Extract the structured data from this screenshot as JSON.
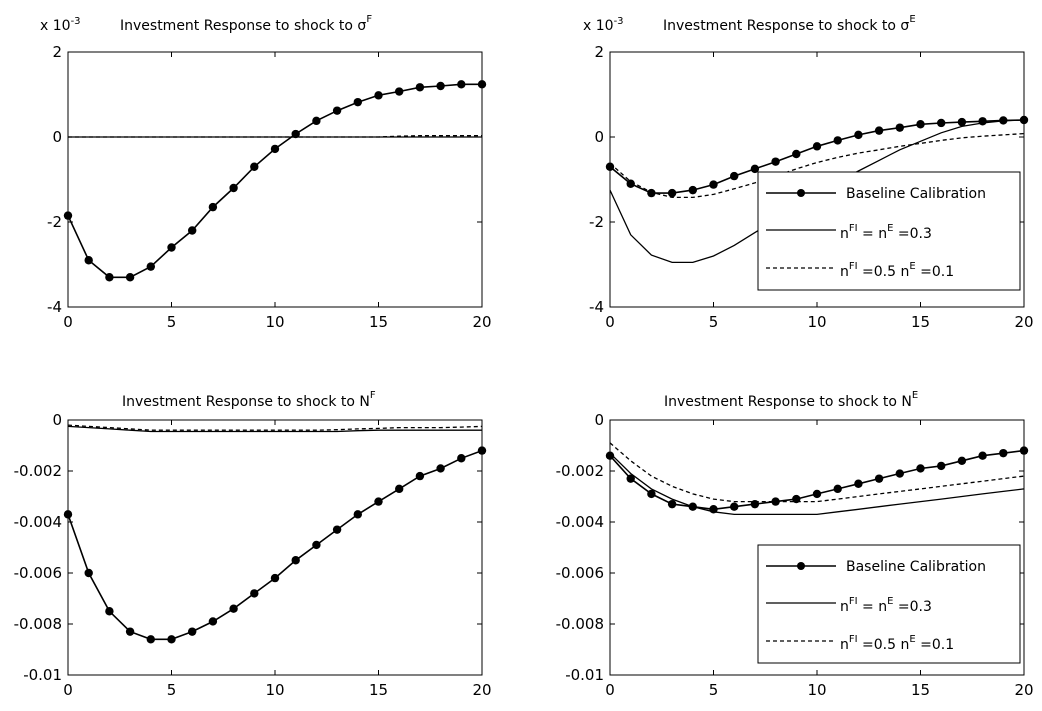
{
  "chart_data": [
    {
      "type": "line",
      "multiplier": "x 10",
      "multiplier_exp": "-3",
      "title": "Investment Response to shock to σ",
      "title_sup": "F",
      "xlim": [
        0,
        20
      ],
      "ylim": [
        -4,
        2
      ],
      "xticks": [
        "0",
        "5",
        "10",
        "15",
        "20"
      ],
      "yticks": [
        "-4",
        "-2",
        "0",
        "2"
      ],
      "grid": false,
      "series": [
        {
          "style": "dot",
          "x": [
            0,
            1,
            2,
            3,
            4,
            5,
            6,
            7,
            8,
            9,
            10,
            11,
            12,
            13,
            14,
            15,
            16,
            17,
            18,
            19,
            20
          ],
          "values": [
            -1.85,
            -2.9,
            -3.3,
            -3.3,
            -3.05,
            -2.6,
            -2.2,
            -1.65,
            -1.2,
            -0.7,
            -0.28,
            0.07,
            0.38,
            0.62,
            0.82,
            0.98,
            1.07,
            1.17,
            1.2,
            1.24,
            1.24
          ]
        },
        {
          "style": "solid",
          "x": [
            0,
            5,
            10,
            15,
            20
          ],
          "values": [
            0,
            0,
            0,
            0,
            0
          ]
        },
        {
          "style": "dashed",
          "x": [
            0,
            15,
            16,
            17,
            20
          ],
          "values": [
            0,
            0,
            0.02,
            0.03,
            0.03
          ]
        }
      ]
    },
    {
      "type": "line",
      "multiplier": "x 10",
      "multiplier_exp": "-3",
      "title": "Investment Response to shock to σ",
      "title_sup": "E",
      "xlim": [
        0,
        20
      ],
      "ylim": [
        -4,
        2
      ],
      "xticks": [
        "0",
        "5",
        "10",
        "15",
        "20"
      ],
      "yticks": [
        "-4",
        "-2",
        "0",
        "2"
      ],
      "grid": false,
      "legend": "lower right",
      "series": [
        {
          "style": "dot",
          "x": [
            0,
            1,
            2,
            3,
            4,
            5,
            6,
            7,
            8,
            9,
            10,
            11,
            12,
            13,
            14,
            15,
            16,
            17,
            18,
            19,
            20
          ],
          "values": [
            -0.7,
            -1.1,
            -1.32,
            -1.32,
            -1.25,
            -1.12,
            -0.92,
            -0.75,
            -0.58,
            -0.4,
            -0.22,
            -0.08,
            0.05,
            0.15,
            0.22,
            0.3,
            0.33,
            0.35,
            0.37,
            0.39,
            0.4
          ]
        },
        {
          "style": "solid",
          "x": [
            0,
            1,
            2,
            3,
            4,
            5,
            6,
            7,
            8,
            9,
            10,
            11,
            12,
            13,
            14,
            15,
            16,
            17,
            18,
            19,
            20
          ],
          "values": [
            -1.25,
            -2.3,
            -2.78,
            -2.95,
            -2.95,
            -2.8,
            -2.55,
            -2.25,
            -1.95,
            -1.65,
            -1.35,
            -1.05,
            -0.8,
            -0.55,
            -0.3,
            -0.1,
            0.1,
            0.25,
            0.33,
            0.38,
            0.4
          ]
        },
        {
          "style": "dashed",
          "x": [
            0,
            1,
            2,
            3,
            4,
            5,
            6,
            7,
            8,
            9,
            10,
            11,
            12,
            13,
            14,
            15,
            16,
            17,
            18,
            19,
            20
          ],
          "values": [
            -0.62,
            -1.05,
            -1.3,
            -1.42,
            -1.42,
            -1.35,
            -1.22,
            -1.08,
            -0.92,
            -0.75,
            -0.6,
            -0.48,
            -0.38,
            -0.3,
            -0.22,
            -0.15,
            -0.08,
            -0.02,
            0.02,
            0.05,
            0.08
          ]
        }
      ]
    },
    {
      "type": "line",
      "title": "Investment Response to shock to N",
      "title_sup": "F",
      "xlim": [
        0,
        20
      ],
      "ylim": [
        -0.01,
        0
      ],
      "xticks": [
        "0",
        "5",
        "10",
        "15",
        "20"
      ],
      "yticks": [
        "-0.01",
        "-0.008",
        "-0.006",
        "-0.004",
        "-0.002",
        "0"
      ],
      "grid": false,
      "series": [
        {
          "style": "dot",
          "x": [
            0,
            1,
            2,
            3,
            4,
            5,
            6,
            7,
            8,
            9,
            10,
            11,
            12,
            13,
            14,
            15,
            16,
            17,
            18,
            19,
            20
          ],
          "values": [
            -0.0037,
            -0.006,
            -0.0075,
            -0.0083,
            -0.0086,
            -0.0086,
            -0.0083,
            -0.0079,
            -0.0074,
            -0.0068,
            -0.0062,
            -0.0055,
            -0.0049,
            -0.0043,
            -0.0037,
            -0.0032,
            -0.0027,
            -0.0022,
            -0.0019,
            -0.0015,
            -0.0012
          ]
        },
        {
          "style": "solid",
          "x": [
            0,
            1,
            2,
            3,
            4,
            5,
            6,
            7,
            8,
            9,
            10,
            11,
            12,
            13,
            14,
            15,
            16,
            17,
            18,
            19,
            20
          ],
          "values": [
            -0.00025,
            -0.0003,
            -0.00035,
            -0.0004,
            -0.00045,
            -0.00045,
            -0.00045,
            -0.00045,
            -0.00045,
            -0.00045,
            -0.00045,
            -0.00045,
            -0.00045,
            -0.00045,
            -0.00042,
            -0.0004,
            -0.0004,
            -0.0004,
            -0.0004,
            -0.0004,
            -0.0004
          ]
        },
        {
          "style": "dashed",
          "x": [
            0,
            1,
            2,
            3,
            4,
            5,
            6,
            7,
            8,
            9,
            10,
            11,
            12,
            13,
            14,
            15,
            16,
            17,
            18,
            19,
            20
          ],
          "values": [
            -0.0002,
            -0.00025,
            -0.0003,
            -0.00035,
            -0.0004,
            -0.0004,
            -0.0004,
            -0.0004,
            -0.0004,
            -0.0004,
            -0.0004,
            -0.0004,
            -0.0004,
            -0.00038,
            -0.00035,
            -0.00033,
            -0.0003,
            -0.0003,
            -0.0003,
            -0.00028,
            -0.00025
          ]
        }
      ]
    },
    {
      "type": "line",
      "title": "Investment Response to shock to N",
      "title_sup": "E",
      "xlim": [
        0,
        20
      ],
      "ylim": [
        -0.01,
        0
      ],
      "xticks": [
        "0",
        "5",
        "10",
        "15",
        "20"
      ],
      "yticks": [
        "-0.01",
        "-0.008",
        "-0.006",
        "-0.004",
        "-0.002",
        "0"
      ],
      "grid": false,
      "legend": "lower right",
      "series": [
        {
          "style": "dot",
          "x": [
            0,
            1,
            2,
            3,
            4,
            5,
            6,
            7,
            8,
            9,
            10,
            11,
            12,
            13,
            14,
            15,
            16,
            17,
            18,
            19,
            20
          ],
          "values": [
            -0.0014,
            -0.0023,
            -0.0029,
            -0.0033,
            -0.0034,
            -0.0035,
            -0.0034,
            -0.0033,
            -0.0032,
            -0.0031,
            -0.0029,
            -0.0027,
            -0.0025,
            -0.0023,
            -0.0021,
            -0.0019,
            -0.0018,
            -0.0016,
            -0.0014,
            -0.0013,
            -0.0012
          ]
        },
        {
          "style": "solid",
          "x": [
            0,
            1,
            2,
            3,
            4,
            5,
            6,
            7,
            8,
            9,
            10,
            11,
            12,
            13,
            14,
            15,
            16,
            17,
            18,
            19,
            20
          ],
          "values": [
            -0.0013,
            -0.0021,
            -0.0027,
            -0.0031,
            -0.0034,
            -0.0036,
            -0.0037,
            -0.0037,
            -0.0037,
            -0.0037,
            -0.0037,
            -0.0036,
            -0.0035,
            -0.0034,
            -0.0033,
            -0.0032,
            -0.0031,
            -0.003,
            -0.0029,
            -0.0028,
            -0.0027
          ]
        },
        {
          "style": "dashed",
          "x": [
            0,
            1,
            2,
            3,
            4,
            5,
            6,
            7,
            8,
            9,
            10,
            11,
            12,
            13,
            14,
            15,
            16,
            17,
            18,
            19,
            20
          ],
          "values": [
            -0.0009,
            -0.0016,
            -0.0022,
            -0.0026,
            -0.0029,
            -0.0031,
            -0.0032,
            -0.0032,
            -0.0032,
            -0.0032,
            -0.0032,
            -0.0031,
            -0.003,
            -0.0029,
            -0.0028,
            -0.0027,
            -0.0026,
            -0.0025,
            -0.0024,
            -0.0023,
            -0.0022
          ]
        }
      ]
    }
  ],
  "legend_entries": [
    {
      "style": "dot",
      "label": "Baseline Calibration"
    },
    {
      "style": "solid",
      "label_parts": [
        "n",
        "FI",
        " = n",
        "E",
        " =0.3"
      ]
    },
    {
      "style": "dashed",
      "label_parts": [
        "n",
        "FI",
        " =0.5 n",
        "E",
        " =0.1"
      ]
    }
  ]
}
